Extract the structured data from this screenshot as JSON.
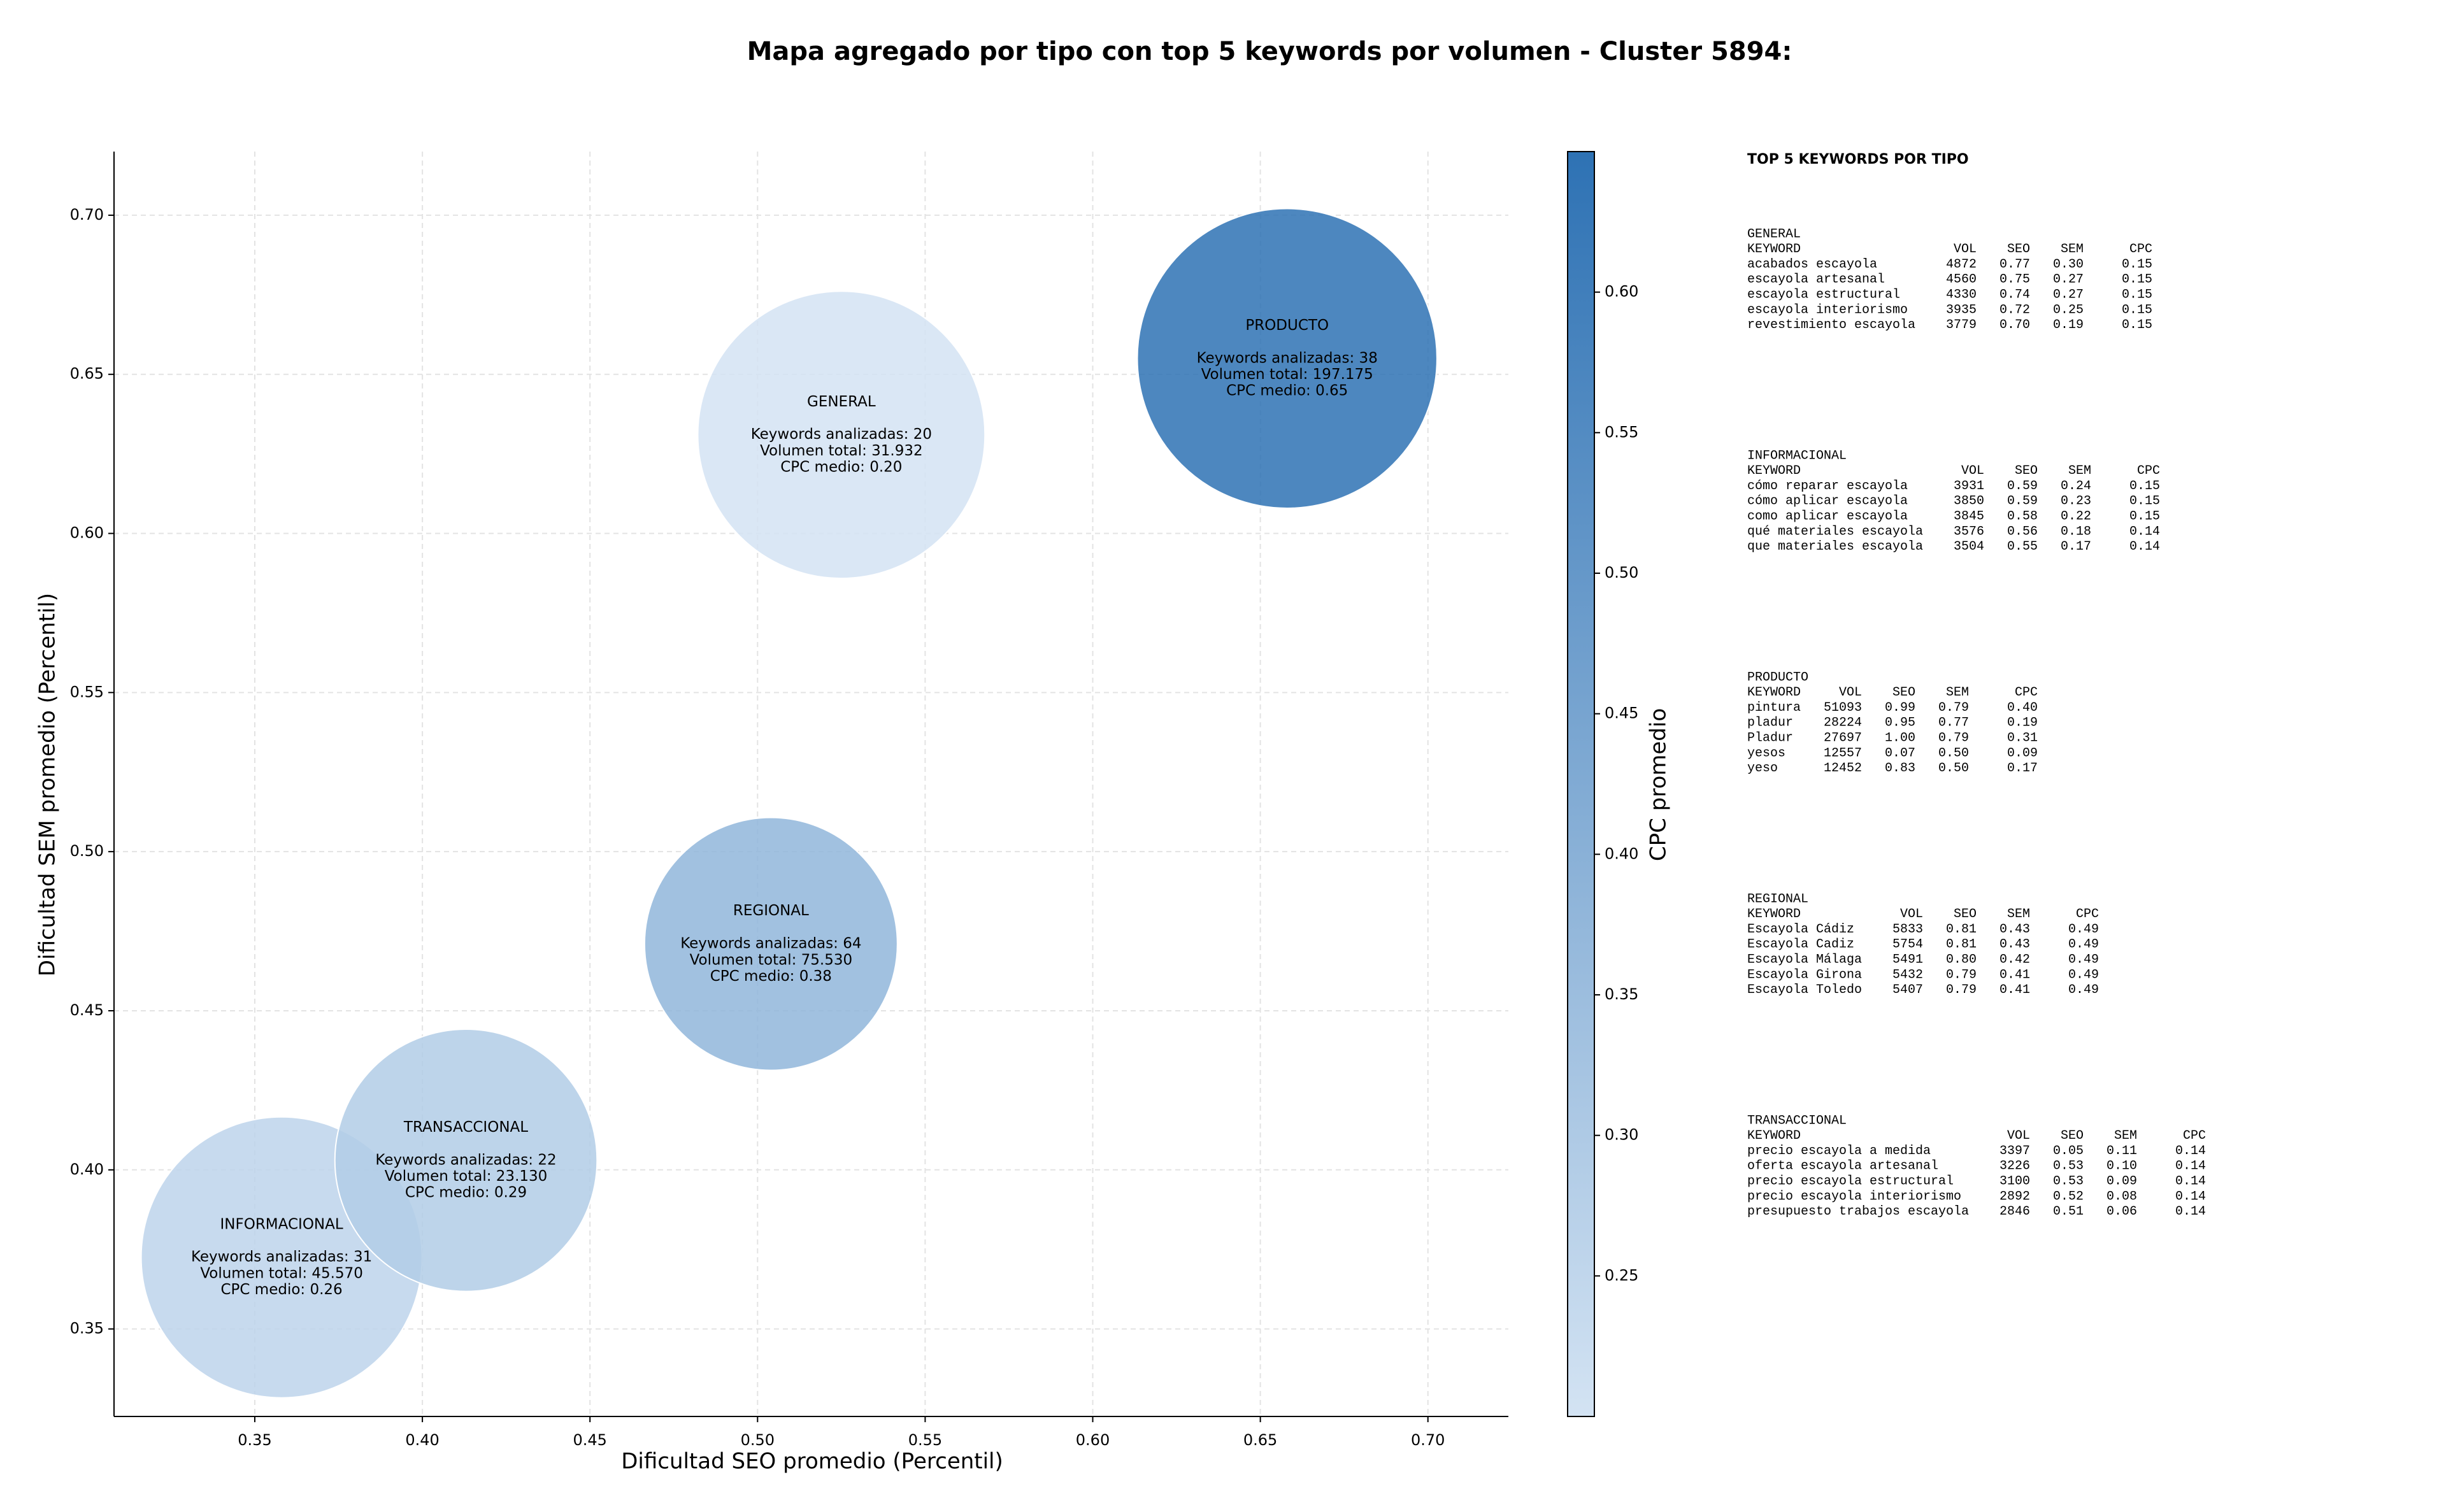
{
  "chart_data": {
    "type": "bubble",
    "title": "Mapa agregado por tipo con top 5 keywords por volumen - Cluster 5894:",
    "xlabel": "Dificultad SEO promedio (Percentil)",
    "ylabel": "Dificultad SEM promedio (Percentil)",
    "xlim": [
      0.308,
      0.724
    ],
    "ylim": [
      0.3225,
      0.72
    ],
    "xticks": [
      0.35,
      {
        "value": 0.4,
        "label": "0.40"
      },
      0.45,
      {
        "value": 0.5,
        "label": "0.50"
      },
      0.55,
      {
        "value": 0.6,
        "label": "0.60"
      },
      0.65,
      {
        "value": 0.7,
        "label": "0.70"
      }
    ],
    "yticks": [
      0.35,
      {
        "value": 0.4,
        "label": "0.40"
      },
      0.45,
      {
        "value": 0.5,
        "label": "0.50"
      },
      0.55,
      {
        "value": 0.6,
        "label": "0.60"
      },
      0.65,
      {
        "value": 0.7,
        "label": "0.70"
      }
    ],
    "grid": true,
    "names": [
      "GENERAL",
      "INFORMACIONAL",
      "PRODUCTO",
      "REGIONAL",
      "TRANSACCIONAL"
    ],
    "x": [
      0.525,
      0.358,
      0.658,
      0.504,
      0.413
    ],
    "values": [
      0.631,
      0.3725,
      0.655,
      0.471,
      0.403
    ],
    "sizes": [
      8464,
      8100,
      9216,
      6561,
      7056
    ],
    "color_values": [
      0.2,
      0.26,
      0.65,
      0.38,
      0.29
    ],
    "annotations": [
      [
        "Keywords analizadas: 20",
        "Volumen total: 31.932",
        "CPC medio: 0.20"
      ],
      [
        "Keywords analizadas: 31",
        "Volumen total: 45.570",
        "CPC medio: 0.26"
      ],
      [
        "Keywords analizadas: 38",
        "Volumen total: 197.175",
        "CPC medio: 0.65"
      ],
      [
        "Keywords analizadas: 64",
        "Volumen total: 75.530",
        "CPC medio: 0.38"
      ],
      [
        "Keywords analizadas: 22",
        "Volumen total: 23.130",
        "CPC medio: 0.29"
      ]
    ],
    "colorbar": {
      "label": "CPC promedio",
      "lim": [
        0.2,
        0.65
      ],
      "ticks": [
        0.25,
        {
          "value": 0.3,
          "label": "0.30"
        },
        0.35,
        {
          "value": 0.4,
          "label": "0.40"
        },
        0.45,
        {
          "value": 0.5,
          "label": "0.50"
        },
        0.55,
        {
          "value": 0.6,
          "label": "0.60"
        }
      ],
      "colormap": [
        "#d3e3f3",
        "#2e72b4"
      ]
    }
  },
  "side_panel": {
    "title": "TOP 5 KEYWORDS POR TIPO",
    "groups": [
      {
        "name": "GENERAL",
        "columns": [
          "KEYWORD",
          "VOL",
          "SEO",
          "SEM",
          "CPC"
        ],
        "rows": [
          [
            "acabados escayola",
            "4872",
            "0.77",
            "0.30",
            "0.15"
          ],
          [
            "escayola artesanal",
            "4560",
            "0.75",
            "0.27",
            "0.15"
          ],
          [
            "escayola estructural",
            "4330",
            "0.74",
            "0.27",
            "0.15"
          ],
          [
            "escayola interiorismo",
            "3935",
            "0.72",
            "0.25",
            "0.15"
          ],
          [
            "revestimiento escayola",
            "3779",
            "0.70",
            "0.19",
            "0.15"
          ]
        ]
      },
      {
        "name": "INFORMACIONAL",
        "columns": [
          "KEYWORD",
          "VOL",
          "SEO",
          "SEM",
          "CPC"
        ],
        "rows": [
          [
            "cómo reparar escayola",
            "3931",
            "0.59",
            "0.24",
            "0.15"
          ],
          [
            "cómo aplicar escayola",
            "3850",
            "0.59",
            "0.23",
            "0.15"
          ],
          [
            "como aplicar escayola",
            "3845",
            "0.58",
            "0.22",
            "0.15"
          ],
          [
            "qué materiales escayola",
            "3576",
            "0.56",
            "0.18",
            "0.14"
          ],
          [
            "que materiales escayola",
            "3504",
            "0.55",
            "0.17",
            "0.14"
          ]
        ]
      },
      {
        "name": "PRODUCTO",
        "columns": [
          "KEYWORD",
          "VOL",
          "SEO",
          "SEM",
          "CPC"
        ],
        "rows": [
          [
            "pintura",
            "51093",
            "0.99",
            "0.79",
            "0.40"
          ],
          [
            "pladur",
            "28224",
            "0.95",
            "0.77",
            "0.19"
          ],
          [
            "Pladur",
            "27697",
            "1.00",
            "0.79",
            "0.31"
          ],
          [
            "yesos",
            "12557",
            "0.07",
            "0.50",
            "0.09"
          ],
          [
            "yeso",
            "12452",
            "0.83",
            "0.50",
            "0.17"
          ]
        ]
      },
      {
        "name": "REGIONAL",
        "columns": [
          "KEYWORD",
          "VOL",
          "SEO",
          "SEM",
          "CPC"
        ],
        "rows": [
          [
            "Escayola Cádiz",
            "5833",
            "0.81",
            "0.43",
            "0.49"
          ],
          [
            "Escayola Cadiz",
            "5754",
            "0.81",
            "0.43",
            "0.49"
          ],
          [
            "Escayola Málaga",
            "5491",
            "0.80",
            "0.42",
            "0.49"
          ],
          [
            "Escayola Girona",
            "5432",
            "0.79",
            "0.41",
            "0.49"
          ],
          [
            "Escayola Toledo",
            "5407",
            "0.79",
            "0.41",
            "0.49"
          ]
        ]
      },
      {
        "name": "TRANSACCIONAL",
        "columns": [
          "KEYWORD",
          "VOL",
          "SEO",
          "SEM",
          "CPC"
        ],
        "rows": [
          [
            "precio escayola a medida",
            "3397",
            "0.05",
            "0.11",
            "0.14"
          ],
          [
            "oferta escayola artesanal",
            "3226",
            "0.53",
            "0.10",
            "0.14"
          ],
          [
            "precio escayola estructural",
            "3100",
            "0.53",
            "0.09",
            "0.14"
          ],
          [
            "precio escayola interiorismo",
            "2892",
            "0.52",
            "0.08",
            "0.14"
          ],
          [
            "presupuesto trabajos escayola",
            "2846",
            "0.51",
            "0.06",
            "0.14"
          ]
        ]
      }
    ]
  }
}
